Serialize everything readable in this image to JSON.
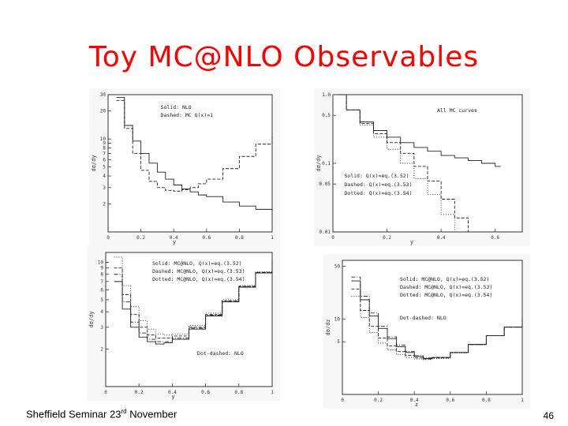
{
  "slide": {
    "title": "Toy MC@NLO Observables",
    "footer_prefix": "Sheffield Seminar 23",
    "footer_sup": "rd",
    "footer_suffix": " November",
    "page_number": "46"
  },
  "chart_data": [
    {
      "type": "line",
      "ylabel": "dσ/dy",
      "xlabel": "y",
      "xlim": [
        0,
        1
      ],
      "ylim": [
        1,
        30
      ],
      "log_y": true,
      "x_ticks": [
        "0",
        "0.2",
        "0.4",
        "0.6",
        "0.8",
        "1"
      ],
      "y_ticks": [
        "30",
        "20",
        "10",
        "9",
        "8",
        "7",
        "6",
        "5",
        "4",
        "3",
        "2"
      ],
      "legend": [
        "Solid: NLO",
        "Dashed: MC Q(x)=1"
      ],
      "series": [
        {
          "style": "solid",
          "x": [
            0.05,
            0.1,
            0.15,
            0.2,
            0.25,
            0.3,
            0.35,
            0.4,
            0.45,
            0.5,
            0.55,
            0.6,
            0.7,
            0.8,
            0.9,
            1.0
          ],
          "y": [
            28,
            14,
            9.5,
            7,
            5.5,
            4.4,
            3.7,
            3.2,
            2.9,
            2.7,
            2.5,
            2.4,
            2.1,
            1.9,
            1.75,
            1.65
          ]
        },
        {
          "style": "dashed",
          "x": [
            0.05,
            0.1,
            0.15,
            0.2,
            0.25,
            0.3,
            0.35,
            0.4,
            0.45,
            0.5,
            0.55,
            0.6,
            0.7,
            0.8,
            0.9,
            1.0
          ],
          "y": [
            26,
            13,
            7,
            4.6,
            3.5,
            3.0,
            2.8,
            2.75,
            2.85,
            3.0,
            3.3,
            3.7,
            4.8,
            6.5,
            8.8,
            11.5
          ]
        }
      ]
    },
    {
      "type": "line",
      "ylabel": "dσ/dy",
      "xlabel": "y",
      "xlim": [
        0,
        0.7
      ],
      "ylim": [
        0.01,
        1
      ],
      "log_y": true,
      "x_ticks": [
        "0",
        "0.2",
        "0.4",
        "0.6"
      ],
      "y_ticks": [
        "1.0",
        "0.5",
        "0.1",
        "0.05",
        "0.01"
      ],
      "legend": [
        "All MC curves",
        "Solid: Q(x)=eq.(3.52)",
        "Dashed: Q(x)=eq.(3.53)",
        "Dotted: Q(x)=eq.(3.54)"
      ],
      "series": [
        {
          "style": "solid",
          "x": [
            0.02,
            0.05,
            0.1,
            0.15,
            0.2,
            0.25,
            0.3,
            0.35,
            0.4,
            0.45,
            0.5,
            0.55,
            0.6,
            0.62
          ],
          "y": [
            1.0,
            0.6,
            0.4,
            0.3,
            0.24,
            0.2,
            0.17,
            0.15,
            0.13,
            0.12,
            0.11,
            0.1,
            0.09,
            0.09
          ]
        },
        {
          "style": "dashed",
          "x": [
            0.02,
            0.05,
            0.1,
            0.15,
            0.2,
            0.25,
            0.3,
            0.35,
            0.4,
            0.45,
            0.5
          ],
          "y": [
            1.0,
            0.6,
            0.38,
            0.27,
            0.2,
            0.14,
            0.09,
            0.055,
            0.03,
            0.016,
            0.01
          ]
        },
        {
          "style": "dotted",
          "x": [
            0.02,
            0.05,
            0.1,
            0.15,
            0.2,
            0.25,
            0.3,
            0.35,
            0.4,
            0.45
          ],
          "y": [
            1.0,
            0.6,
            0.36,
            0.24,
            0.16,
            0.1,
            0.06,
            0.035,
            0.018,
            0.01
          ]
        }
      ]
    },
    {
      "type": "line",
      "ylabel": "dσ/dy",
      "xlabel": "y",
      "xlim": [
        0,
        1
      ],
      "ylim": [
        1,
        12
      ],
      "log_y": true,
      "x_ticks": [
        "0",
        "0.2",
        "0.4",
        "0.6",
        "0.8",
        "1"
      ],
      "y_ticks": [
        "10",
        "9",
        "8",
        "7",
        "6",
        "5",
        "4",
        "3",
        "2"
      ],
      "legend": [
        "Solid: MC@NLO, Q(x)=eq.(3.52)",
        "Dashed: MC@NLO, Q(x)=eq.(3.53)",
        "Dotted: MC@NLO, Q(x)=eq.(3.54)",
        "Dot-dashed: NLO"
      ],
      "series": [
        {
          "style": "solid",
          "x": [
            0.05,
            0.1,
            0.15,
            0.2,
            0.25,
            0.3,
            0.35,
            0.4,
            0.5,
            0.6,
            0.7,
            0.8,
            0.9,
            1.0
          ],
          "y": [
            7,
            4.2,
            3.0,
            2.5,
            2.3,
            2.2,
            2.25,
            2.4,
            2.9,
            3.7,
            4.8,
            6.3,
            8.2,
            10.5
          ]
        },
        {
          "style": "dashed",
          "x": [
            0.05,
            0.1,
            0.15,
            0.2,
            0.25,
            0.3,
            0.35,
            0.4,
            0.5,
            0.6,
            0.7,
            0.8,
            0.9,
            1.0
          ],
          "y": [
            9,
            5.5,
            3.8,
            3.0,
            2.6,
            2.45,
            2.45,
            2.55,
            3.0,
            3.8,
            4.9,
            6.4,
            8.3,
            10.6
          ]
        },
        {
          "style": "dotted",
          "x": [
            0.05,
            0.1,
            0.15,
            0.2,
            0.25,
            0.3,
            0.35,
            0.4,
            0.5,
            0.6,
            0.7,
            0.8,
            0.9,
            1.0
          ],
          "y": [
            11,
            6.5,
            4.4,
            3.4,
            2.9,
            2.65,
            2.6,
            2.65,
            3.1,
            3.9,
            5.0,
            6.5,
            8.4,
            10.7
          ]
        },
        {
          "style": "dotdash",
          "x": [
            0.05,
            0.1,
            0.15,
            0.2,
            0.25,
            0.3,
            0.35,
            0.4,
            0.5,
            0.6,
            0.7,
            0.8,
            0.9,
            1.0
          ],
          "y": [
            8,
            4.8,
            3.3,
            2.7,
            2.4,
            2.3,
            2.3,
            2.45,
            2.95,
            3.75,
            4.85,
            6.35,
            8.25,
            10.5
          ]
        }
      ]
    },
    {
      "type": "line",
      "ylabel": "dσ/dz",
      "xlabel": "z",
      "xlim": [
        0,
        1
      ],
      "ylim": [
        1,
        60
      ],
      "log_y": true,
      "x_ticks": [
        "0",
        "0.2",
        "0.4",
        "0.6",
        "0.8",
        "1"
      ],
      "y_ticks": [
        "50",
        "10",
        "5"
      ],
      "legend": [
        "Solid: MC@NLO, Q(x)=eq.(3.52)",
        "Dashed: MC@NLO, Q(x)=eq.(3.53)",
        "Dotted: MC@NLO, Q(x)=eq.(3.54)",
        "Dot-dashed: NLO"
      ],
      "series": [
        {
          "style": "solid",
          "x": [
            0.05,
            0.1,
            0.15,
            0.2,
            0.25,
            0.3,
            0.35,
            0.4,
            0.45,
            0.5,
            0.6,
            0.7,
            0.8,
            0.9,
            1.0
          ],
          "y": [
            32,
            18,
            11,
            7.5,
            5.5,
            4.3,
            3.6,
            3.2,
            3.0,
            3.1,
            3.6,
            4.6,
            6.0,
            7.8,
            10
          ]
        },
        {
          "style": "dashed",
          "x": [
            0.05,
            0.1,
            0.15,
            0.2,
            0.25,
            0.3,
            0.35,
            0.4,
            0.45,
            0.5,
            0.6,
            0.7,
            0.8,
            0.9,
            1.0
          ],
          "y": [
            25,
            13,
            8,
            5.6,
            4.4,
            3.7,
            3.3,
            3.05,
            2.95,
            3.05,
            3.6,
            4.6,
            6.0,
            7.8,
            10
          ]
        },
        {
          "style": "dotted",
          "x": [
            0.05,
            0.1,
            0.15,
            0.2,
            0.25,
            0.3,
            0.35,
            0.4,
            0.45,
            0.5,
            0.6,
            0.7,
            0.8,
            0.9,
            1.0
          ],
          "y": [
            20,
            10.5,
            6.6,
            4.8,
            3.9,
            3.4,
            3.1,
            2.95,
            2.9,
            3.0,
            3.55,
            4.55,
            6.0,
            7.8,
            10
          ]
        },
        {
          "style": "dotdash",
          "x": [
            0.05,
            0.1,
            0.15,
            0.2,
            0.25,
            0.3,
            0.35,
            0.4,
            0.45,
            0.5,
            0.6,
            0.7,
            0.8,
            0.9,
            1.0
          ],
          "y": [
            36,
            20,
            12,
            8,
            5.8,
            4.5,
            3.7,
            3.25,
            3.05,
            3.1,
            3.6,
            4.6,
            6.0,
            7.8,
            10
          ]
        }
      ]
    }
  ]
}
